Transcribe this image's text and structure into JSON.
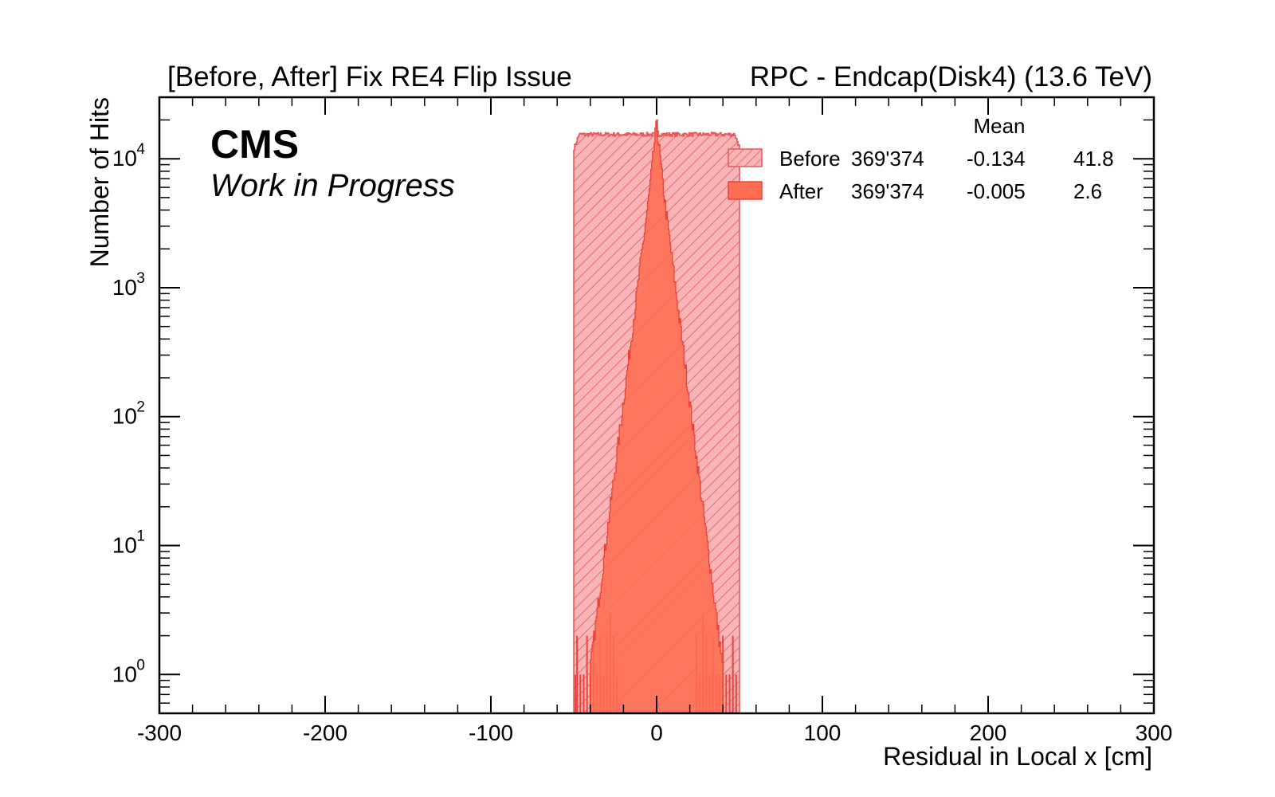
{
  "chart_data": {
    "type": "histogram",
    "title_left": "[Before, After] Fix RE4 Flip Issue",
    "title_right": "RPC - Endcap(Disk4) (13.6 TeV)",
    "experiment": "CMS",
    "status": "Work in Progress",
    "xlabel": "Residual in Local x [cm]",
    "ylabel": "Number of Hits",
    "xlim": [
      -300,
      300
    ],
    "ylim": [
      0.5,
      30000
    ],
    "log_y": true,
    "x_ticks": [
      "-300",
      "-200",
      "-100",
      "0",
      "100",
      "200",
      "300"
    ],
    "y_tick_base": "10",
    "y_tick_exponents": [
      "0",
      "1",
      "2",
      "3",
      "4"
    ],
    "legend": {
      "placement": "top-right",
      "header_label": "Mean",
      "columns": [
        "",
        "",
        "Mean",
        ""
      ],
      "rows": [
        {
          "name": "Before",
          "entries": "369'374",
          "mean": "-0.134",
          "std": "41.8"
        },
        {
          "name": "After",
          "entries": "369'374",
          "mean": "-0.005",
          "std": "2.6"
        }
      ]
    },
    "series": [
      {
        "name": "Before",
        "style": "hatched",
        "color": "#e8585c",
        "fill": "#f4a8ab",
        "flat_range": [
          -50,
          50
        ],
        "flat_level": 16000,
        "core_peak": 20000,
        "core_width": 2.5,
        "sparse_tails": [
          [
            -49,
            1
          ],
          [
            -48,
            2
          ],
          [
            -46,
            1
          ],
          [
            -44,
            1
          ],
          [
            -42,
            2
          ],
          [
            -40,
            1
          ],
          [
            -38,
            2
          ],
          [
            -36,
            1
          ],
          [
            -34,
            2
          ],
          [
            -32,
            1
          ],
          [
            -30,
            2
          ],
          [
            -28,
            3
          ],
          [
            -26,
            2
          ],
          [
            -24,
            1
          ],
          [
            24,
            2
          ],
          [
            26,
            1
          ],
          [
            28,
            3
          ],
          [
            30,
            2
          ],
          [
            32,
            1
          ],
          [
            34,
            2
          ],
          [
            36,
            1
          ],
          [
            38,
            1
          ],
          [
            40,
            2
          ],
          [
            42,
            1
          ],
          [
            44,
            1
          ],
          [
            46,
            2
          ],
          [
            48,
            1
          ]
        ]
      },
      {
        "name": "After",
        "style": "solid",
        "color": "#e8443a",
        "fill": "#ff6d52",
        "peak": 18000,
        "sigma_core": 1.6,
        "tail_scale": 4.2,
        "range": [
          -40,
          40
        ]
      }
    ]
  }
}
